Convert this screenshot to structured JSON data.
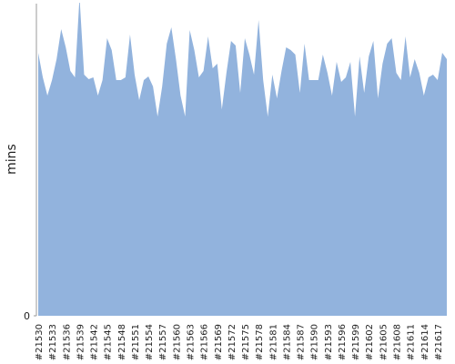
{
  "chart_data": {
    "type": "area",
    "y_label": "mins",
    "categories": [
      "#21530",
      null,
      null,
      "#21533",
      null,
      null,
      "#21536",
      null,
      null,
      "#21539",
      null,
      null,
      "#21542",
      null,
      null,
      "#21545",
      null,
      null,
      "#21548",
      null,
      null,
      "#21551",
      null,
      null,
      "#21554",
      null,
      null,
      "#21557",
      null,
      null,
      "#21560",
      null,
      null,
      "#21563",
      null,
      null,
      "#21566",
      null,
      null,
      "#21569",
      null,
      null,
      "#21572",
      null,
      null,
      "#21575",
      null,
      null,
      "#21578",
      null,
      null,
      "#21581",
      null,
      null,
      "#21584",
      null,
      null,
      "#21587",
      null,
      null,
      "#21590",
      null,
      null,
      "#21593",
      null,
      null,
      "#21596",
      null,
      null,
      "#21599",
      null,
      null,
      "#21602",
      null,
      null,
      "#21605",
      null,
      null,
      "#21608",
      null,
      null,
      "#21611",
      null,
      null,
      "#21614",
      null,
      null,
      "#21617",
      null,
      null
    ],
    "values": [
      28.9,
      26.2,
      24.2,
      25.9,
      28.2,
      31.5,
      29.5,
      26.9,
      26.2,
      35,
      26.5,
      26.0,
      26.2,
      24.2,
      25.9,
      30.5,
      29.2,
      25.9,
      25.9,
      26.2,
      30.9,
      26.5,
      23.7,
      25.9,
      26.3,
      25.2,
      21.9,
      25.2,
      29.9,
      31.7,
      28.2,
      24.2,
      21.9,
      31.4,
      29.2,
      26.2,
      26.9,
      30.7,
      27.2,
      27.7,
      22.7,
      26.7,
      30.2,
      29.7,
      24.5,
      30.5,
      28.7,
      26.5,
      32.5,
      25.9,
      21.9,
      26.5,
      23.9,
      26.9,
      29.5,
      29.2,
      28.7,
      24.5,
      29.9,
      25.9,
      25.9,
      25.9,
      28.7,
      26.7,
      24.2,
      27.9,
      25.7,
      26.2,
      27.9,
      21.9,
      28.5,
      24.5,
      28.5,
      30.2,
      23.9,
      27.7,
      29.9,
      30.5,
      26.7,
      25.9,
      30.7,
      26.2,
      28.2,
      26.7,
      24.2,
      26.2,
      26.5,
      25.9,
      28.9,
      28.2
    ],
    "color": "#92b3dd",
    "ylim": [
      0,
      34.2
    ],
    "yticks": [
      0
    ]
  }
}
